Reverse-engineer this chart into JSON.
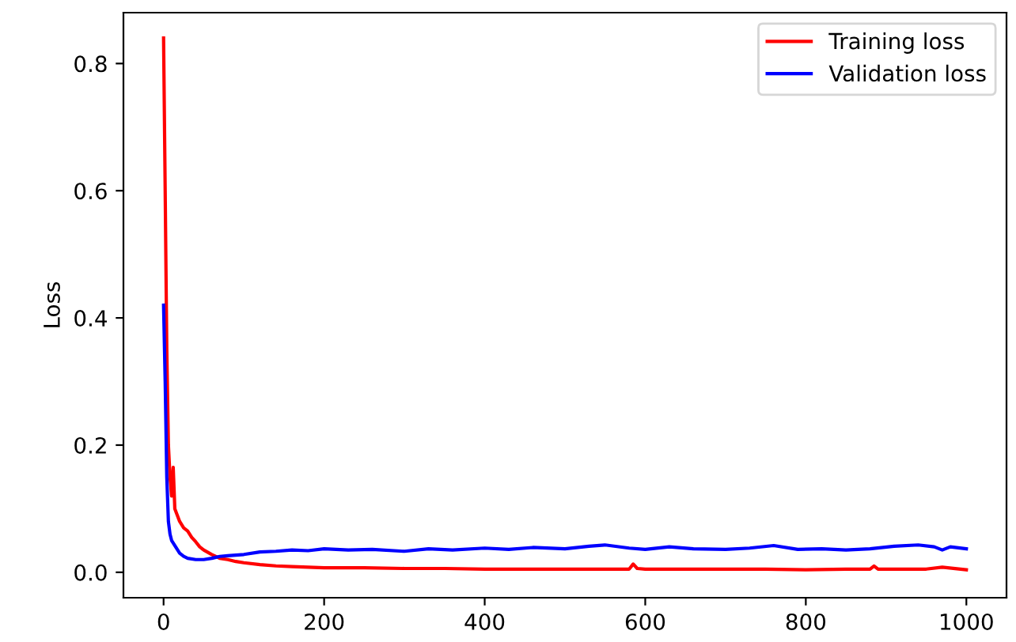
{
  "chart_data": {
    "type": "line",
    "ylabel": "Loss",
    "xlim": [
      -50,
      1050
    ],
    "ylim": [
      -0.04,
      0.88
    ],
    "xticks": [
      0,
      200,
      400,
      600,
      800,
      1000
    ],
    "yticks": [
      {
        "value": 0.0,
        "label": "0.0"
      },
      {
        "value": 0.2,
        "label": "0.2"
      },
      {
        "value": 0.4,
        "label": "0.4"
      },
      {
        "value": 0.6,
        "label": "0.6"
      },
      {
        "value": 0.8,
        "label": "0.8"
      }
    ],
    "legend": "top right",
    "grid": false,
    "marker": "none",
    "line_style": "solid",
    "series": [
      {
        "name": "Training loss",
        "color": "#ff0000",
        "x": [
          0,
          2,
          4,
          6,
          8,
          10,
          12,
          14,
          17,
          20,
          25,
          30,
          35,
          40,
          45,
          50,
          60,
          70,
          80,
          90,
          100,
          120,
          140,
          160,
          180,
          200,
          250,
          300,
          350,
          400,
          450,
          500,
          550,
          580,
          585,
          590,
          600,
          650,
          700,
          750,
          800,
          850,
          880,
          885,
          890,
          900,
          950,
          970,
          1000
        ],
        "values": [
          0.84,
          0.6,
          0.35,
          0.2,
          0.15,
          0.12,
          0.165,
          0.1,
          0.09,
          0.08,
          0.07,
          0.065,
          0.055,
          0.048,
          0.04,
          0.035,
          0.028,
          0.022,
          0.02,
          0.017,
          0.015,
          0.012,
          0.01,
          0.009,
          0.008,
          0.007,
          0.007,
          0.006,
          0.006,
          0.005,
          0.005,
          0.005,
          0.005,
          0.005,
          0.013,
          0.006,
          0.005,
          0.005,
          0.005,
          0.005,
          0.004,
          0.005,
          0.005,
          0.01,
          0.005,
          0.005,
          0.005,
          0.008,
          0.004
        ]
      },
      {
        "name": "Validation loss",
        "color": "#0000ff",
        "x": [
          0,
          2,
          4,
          6,
          8,
          10,
          15,
          20,
          25,
          30,
          40,
          50,
          60,
          70,
          80,
          100,
          120,
          140,
          160,
          180,
          200,
          230,
          260,
          300,
          330,
          360,
          400,
          430,
          460,
          500,
          530,
          550,
          580,
          600,
          630,
          660,
          700,
          730,
          760,
          790,
          820,
          850,
          880,
          910,
          940,
          960,
          970,
          980,
          1000
        ],
        "values": [
          0.42,
          0.3,
          0.15,
          0.08,
          0.06,
          0.05,
          0.04,
          0.03,
          0.025,
          0.022,
          0.02,
          0.02,
          0.022,
          0.025,
          0.026,
          0.028,
          0.032,
          0.033,
          0.035,
          0.034,
          0.037,
          0.035,
          0.036,
          0.033,
          0.037,
          0.035,
          0.038,
          0.036,
          0.039,
          0.037,
          0.041,
          0.043,
          0.038,
          0.036,
          0.04,
          0.037,
          0.036,
          0.038,
          0.042,
          0.036,
          0.037,
          0.035,
          0.037,
          0.041,
          0.043,
          0.04,
          0.035,
          0.04,
          0.037
        ]
      }
    ]
  }
}
